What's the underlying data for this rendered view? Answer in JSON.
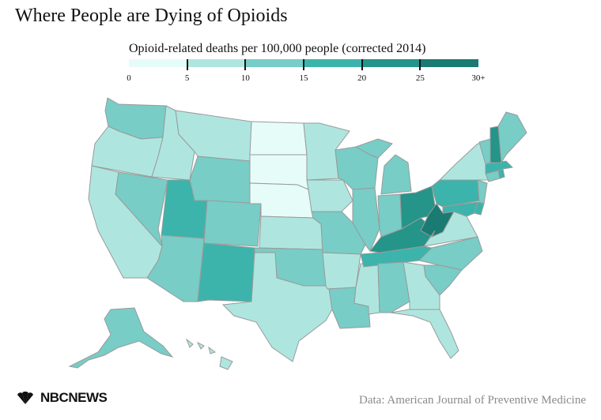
{
  "title": "Where People are Dying of Opioids",
  "legend": {
    "title": "Opioid-related deaths per 100,000 people (corrected 2014)",
    "bins": [
      {
        "label": "0",
        "color": "#e6fcf9"
      },
      {
        "label": "5",
        "color": "#aee6df"
      },
      {
        "label": "10",
        "color": "#78cdc6"
      },
      {
        "label": "15",
        "color": "#3cb4ab"
      },
      {
        "label": "20",
        "color": "#259489"
      },
      {
        "label": "25",
        "color": "#1a7b72"
      }
    ],
    "last_label": "30+"
  },
  "source": "Data: American Journal of Preventive Medicine",
  "logo_text": "NBCNEWS",
  "logo_icon": "peacock-icon",
  "state_bins": {
    "WA": 2,
    "OR": 1,
    "CA": 1,
    "NV": 2,
    "ID": 1,
    "MT": 1,
    "WY": 2,
    "UT": 3,
    "AZ": 2,
    "CO": 2,
    "NM": 3,
    "ND": 0,
    "SD": 0,
    "NE": 0,
    "KS": 1,
    "OK": 2,
    "TX": 1,
    "MN": 1,
    "IA": 1,
    "MO": 2,
    "AR": 1,
    "LA": 2,
    "WI": 2,
    "IL": 2,
    "MS": 1,
    "MI": 2,
    "IN": 2,
    "KY": 4,
    "TN": 3,
    "AL": 2,
    "OH": 4,
    "WV": 5,
    "VA": 1,
    "NC": 2,
    "SC": 2,
    "GA": 1,
    "FL": 1,
    "PA": 3,
    "NY": 1,
    "ME": 2,
    "VT": 2,
    "NH": 4,
    "MA": 3,
    "RI": 3,
    "CT": 2,
    "NJ": 2,
    "DE": 3,
    "MD": 3,
    "AK": 2,
    "HI": 1
  }
}
